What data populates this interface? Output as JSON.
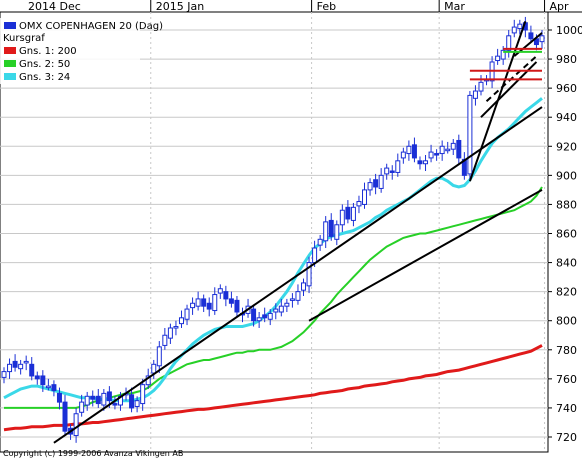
{
  "colors": {
    "candle": "#1a2fd6",
    "ma200": "#e01a1a",
    "ma50": "#27d027",
    "ma24": "#3ad8e8",
    "trend": "#000000",
    "resistance": "#d01818",
    "grid": "#c8c8c8"
  },
  "legend": {
    "title": "OMX COPENHAGEN 20 (Dag)",
    "subtitle": "Kursgraf",
    "items": [
      "Gns. 1: 200",
      "Gns. 2: 50",
      "Gns. 3: 24"
    ]
  },
  "copyright": "Copyright (c) 1999-2006 Avanza Vikingen AB",
  "chart_data": {
    "type": "candlestick",
    "x_month_labels": [
      "2014 Dec",
      "2015 Jan",
      "Feb",
      "Mar",
      "Apr"
    ],
    "x_month_label_index": [
      0,
      27,
      56,
      79,
      98
    ],
    "ylim": [
      712,
      1008
    ],
    "y_ticks": [
      720,
      740,
      760,
      780,
      800,
      820,
      840,
      860,
      880,
      900,
      920,
      940,
      960,
      980,
      1000
    ],
    "grid": true,
    "close": [
      765,
      770,
      768,
      770,
      772,
      762,
      760,
      756,
      755,
      752,
      744,
      724,
      722,
      736,
      744,
      748,
      746,
      743,
      750,
      745,
      742,
      748,
      750,
      740,
      745,
      756,
      762,
      770,
      782,
      790,
      795,
      796,
      802,
      808,
      812,
      815,
      810,
      808,
      818,
      822,
      815,
      812,
      806,
      804,
      810,
      800,
      802,
      802,
      805,
      808,
      810,
      812,
      815,
      820,
      826,
      840,
      850,
      856,
      868,
      858,
      866,
      876,
      870,
      878,
      882,
      890,
      895,
      892,
      900,
      905,
      902,
      910,
      916,
      920,
      912,
      908,
      910,
      916,
      914,
      920,
      918,
      922,
      912,
      900,
      955,
      958,
      964,
      966,
      978,
      982,
      986,
      996,
      1002,
      1004,
      1000,
      994,
      990,
      996
    ],
    "ma200": [
      725,
      725.5,
      726,
      726,
      726.5,
      727,
      727,
      727,
      727.5,
      728,
      728,
      728,
      728.5,
      729,
      729,
      729.5,
      730,
      730,
      730.5,
      731,
      731.5,
      732,
      732.5,
      733,
      733.5,
      734,
      734.5,
      735,
      735.5,
      736,
      736.5,
      737,
      737.5,
      738,
      738.5,
      739,
      739,
      739.5,
      740,
      740.5,
      741,
      741.5,
      742,
      742.5,
      743,
      743.5,
      744,
      744.5,
      745,
      745.5,
      746,
      746.5,
      747,
      747.5,
      748,
      748.5,
      749,
      750,
      750.5,
      751,
      751.5,
      752,
      753,
      753.5,
      754,
      755,
      755.5,
      756,
      756.5,
      757,
      758,
      758.5,
      759,
      760,
      760.5,
      761,
      762,
      762.5,
      763,
      764,
      765,
      765.5,
      766,
      767,
      768,
      769,
      770,
      771,
      772,
      773,
      774,
      775,
      776,
      777,
      778,
      779,
      781,
      783
    ],
    "ma50": [
      740,
      740,
      740,
      740,
      740,
      740,
      740,
      740,
      740,
      740,
      740,
      740,
      740,
      740,
      741,
      742,
      744,
      745,
      746,
      747,
      748,
      749,
      750,
      750,
      751,
      752,
      754,
      757,
      760,
      762,
      764,
      766,
      768,
      770,
      771,
      772,
      773,
      773,
      774,
      775,
      776,
      777,
      778,
      778,
      779,
      779,
      780,
      780,
      780,
      781,
      782,
      784,
      786,
      789,
      792,
      796,
      800,
      805,
      809,
      813,
      818,
      822,
      826,
      830,
      834,
      838,
      842,
      845,
      848,
      851,
      853,
      855,
      857,
      858,
      859,
      860,
      860,
      861,
      862,
      863,
      864,
      865,
      866,
      867,
      868,
      869,
      870,
      871,
      872,
      873,
      874,
      875,
      876,
      878,
      880,
      882,
      886,
      892
    ],
    "ma24": [
      747,
      749,
      751,
      753,
      754,
      755,
      755,
      754,
      753,
      752,
      751,
      750,
      749,
      748,
      747,
      747,
      747,
      746,
      746,
      746,
      745,
      745,
      745,
      745,
      746,
      747,
      749,
      752,
      756,
      761,
      767,
      772,
      776,
      780,
      784,
      787,
      790,
      792,
      794,
      795,
      796,
      796,
      796,
      796,
      797,
      798,
      800,
      803,
      806,
      810,
      815,
      820,
      826,
      833,
      839,
      845,
      850,
      853,
      856,
      858,
      859,
      860,
      861,
      862,
      864,
      866,
      868,
      871,
      873,
      876,
      878,
      880,
      882,
      884,
      887,
      890,
      893,
      896,
      898,
      898,
      896,
      893,
      892,
      893,
      897,
      903,
      910,
      916,
      922,
      926,
      929,
      932,
      936,
      940,
      944,
      947,
      950,
      953
    ]
  }
}
